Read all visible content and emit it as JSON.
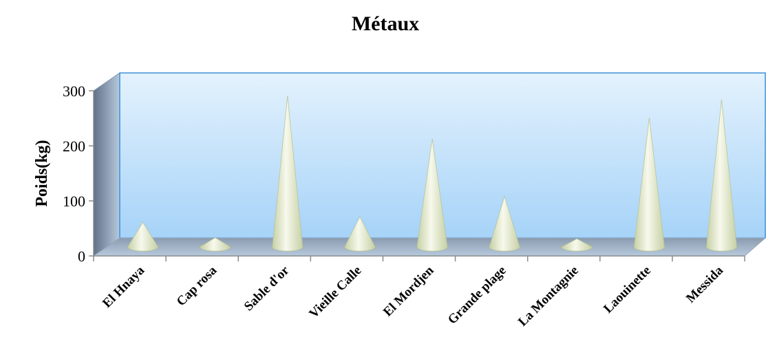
{
  "chart_data": {
    "type": "bar",
    "bar_shape": "cone",
    "three_d": true,
    "title": "Métaux",
    "xlabel": "",
    "ylabel": "Poids(kg)",
    "ylim": [
      0,
      300
    ],
    "yticks": [
      0,
      100,
      200,
      300
    ],
    "grid": false,
    "legend": "none",
    "categories": [
      "El Hnaya",
      "Cap rosa",
      "Sable d'or",
      "Vieille Calle",
      "El Mordjen",
      "Grande plage",
      "La Montagnie",
      "Laouinette",
      "Messida"
    ],
    "values": [
      45,
      17,
      275,
      55,
      197,
      92,
      15,
      235,
      268
    ],
    "colors": {
      "back_wall_top": "#e4f2fd",
      "back_wall_bottom": "#a6d3f8",
      "side_wall_light": "#b6c9dc",
      "side_wall_dark": "#61728a",
      "floor": "#8c9cb0",
      "cone_light": "#f7f9ec",
      "cone_dark": "#c6d0a5"
    }
  }
}
